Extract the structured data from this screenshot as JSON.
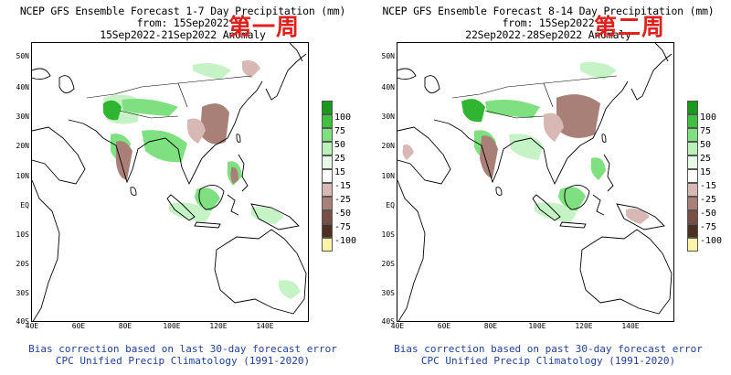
{
  "panels": [
    {
      "title_line1": "NCEP GFS Ensemble Forecast 1-7 Day Precipitation (mm)",
      "title_line2": "from: 15Sep2022",
      "title_line3": "15Sep2022-21Sep2022 Anomaly",
      "week_label": "第一周",
      "footer_line1": "Bias correction based on last 30-day forecast error",
      "footer_line2": "CPC Unified Precip Climatology (1991-2020)"
    },
    {
      "title_line1": "NCEP GFS Ensemble Forecast 8-14 Day Precipitation (mm)",
      "title_line2": "from: 15Sep2022",
      "title_line3": "22Sep2022-28Sep2022 Anomaly",
      "week_label": "第二周",
      "footer_line1": "Bias correction based on past 30-day forecast error",
      "footer_line2": "CPC Unified Precip Climatology (1991-2020)"
    }
  ],
  "lat_labels": [
    "50N",
    "40N",
    "30N",
    "20N",
    "10N",
    "EQ",
    "10S",
    "20S",
    "30S",
    "40S"
  ],
  "lon_labels": [
    "40E",
    "60E",
    "80E",
    "100E",
    "120E",
    "140E"
  ],
  "legend": {
    "labels": [
      "100",
      "75",
      "50",
      "25",
      "15",
      "-15",
      "-25",
      "-50",
      "-75",
      "-100"
    ],
    "colors": [
      "#1a9a1a",
      "#3cc23c",
      "#7ee07e",
      "#b8f0b8",
      "#e6fbe6",
      "#ffffff",
      "#d8b8b4",
      "#a88078",
      "#7a5045",
      "#4e3020",
      "#fff4a8"
    ]
  },
  "colors": {
    "coast": "#000000",
    "wet_dark": "#2fb52f",
    "wet_mid": "#7ee07e",
    "wet_light": "#c6f3c6",
    "dry_light": "#d8b8b4",
    "dry_mid": "#a88078",
    "footer_text": "#1f3f9a",
    "week_label": "#e0201c"
  }
}
